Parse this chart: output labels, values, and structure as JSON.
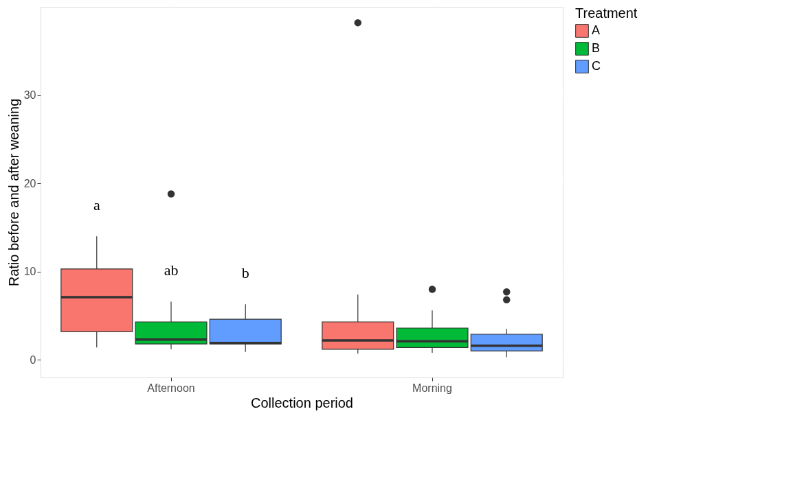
{
  "chart_data": {
    "type": "box",
    "xlabel": "Collection period",
    "ylabel": "Ratio before and after weaning",
    "legend_title": "Treatment",
    "legend": "right",
    "grid": true,
    "categories": [
      "Afternoon",
      "Morning"
    ],
    "ylim": [
      -2,
      40
    ],
    "yticks": [
      0,
      10,
      20,
      30
    ],
    "series": [
      {
        "name": "A",
        "color": "#f8766d",
        "boxes": [
          {
            "low": 1.4,
            "q1": 3.2,
            "median": 7.1,
            "q3": 10.3,
            "high": 14.0
          },
          {
            "low": 0.7,
            "q1": 1.2,
            "median": 2.2,
            "q3": 4.3,
            "high": 7.4,
            "outliers": [
              38.2
            ]
          }
        ]
      },
      {
        "name": "B",
        "color": "#00ba38",
        "boxes": [
          {
            "low": 1.2,
            "q1": 1.8,
            "median": 2.3,
            "q3": 4.3,
            "high": 6.6,
            "outliers": [
              18.8
            ]
          },
          {
            "low": 0.8,
            "q1": 1.4,
            "median": 2.1,
            "q3": 3.6,
            "high": 5.6,
            "outliers": [
              8.0
            ]
          }
        ]
      },
      {
        "name": "C",
        "color": "#619cff",
        "boxes": [
          {
            "low": 0.9,
            "q1": 1.8,
            "median": 1.9,
            "q3": 4.6,
            "high": 6.3
          },
          {
            "low": 0.3,
            "q1": 1.0,
            "median": 1.6,
            "q3": 2.9,
            "high": 3.5,
            "outliers": [
              7.7,
              6.8
            ]
          }
        ]
      }
    ],
    "annotations": [
      "a",
      "ab",
      "b"
    ]
  }
}
